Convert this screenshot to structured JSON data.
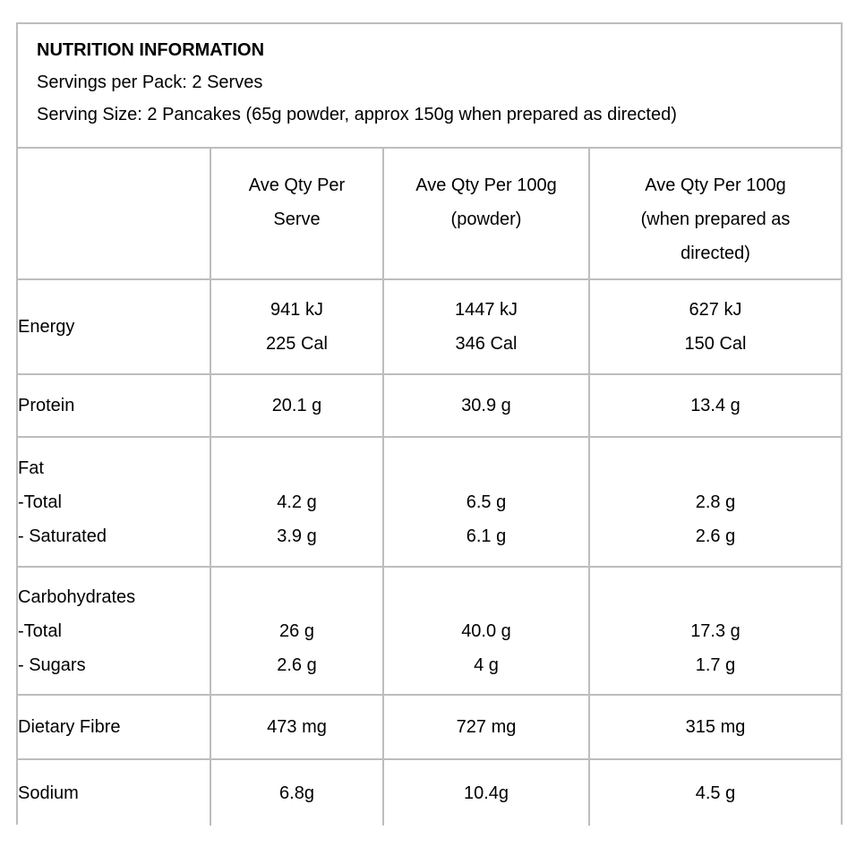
{
  "info": {
    "title": "NUTRITION INFORMATION",
    "servings_per_pack": "Servings per Pack: 2 Serves",
    "serving_size": "Serving Size: 2 Pancakes (65g powder, approx 150g when prepared as directed)"
  },
  "colors": {
    "border": "#bdbdbd",
    "text": "#000000",
    "background": "#ffffff"
  },
  "table": {
    "headers": [
      {
        "lines": []
      },
      {
        "lines": [
          "Ave Qty Per",
          "Serve"
        ]
      },
      {
        "lines": [
          "Ave Qty Per 100g",
          "(powder)"
        ]
      },
      {
        "lines": [
          "Ave Qty Per 100g",
          "(when prepared as",
          "directed)"
        ]
      }
    ],
    "rows": [
      {
        "label_lines": [
          "Energy"
        ],
        "cells": [
          [
            "941 kJ",
            "225 Cal"
          ],
          [
            "1447 kJ",
            "346 Cal"
          ],
          [
            "627 kJ",
            "150 Cal"
          ]
        ]
      },
      {
        "label_lines": [
          "Protein"
        ],
        "cells": [
          [
            "20.1 g"
          ],
          [
            "30.9 g"
          ],
          [
            "13.4 g"
          ]
        ]
      },
      {
        "label_lines": [
          "Fat",
          "-Total",
          "- Saturated"
        ],
        "cells": [
          [
            "",
            "4.2 g",
            "3.9 g"
          ],
          [
            "",
            "6.5 g",
            "6.1 g"
          ],
          [
            "",
            "2.8 g",
            "2.6 g"
          ]
        ]
      },
      {
        "label_lines": [
          "Carbohydrates",
          "-Total",
          "- Sugars"
        ],
        "cells": [
          [
            "",
            "26 g",
            "2.6 g"
          ],
          [
            "",
            "40.0 g",
            "4 g"
          ],
          [
            "",
            "17.3 g",
            "1.7 g"
          ]
        ]
      },
      {
        "label_lines": [
          "Dietary Fibre"
        ],
        "cells": [
          [
            "473 mg"
          ],
          [
            "727 mg"
          ],
          [
            "315 mg"
          ]
        ]
      },
      {
        "label_lines": [
          "Sodium"
        ],
        "cells": [
          [
            "6.8g"
          ],
          [
            "10.4g"
          ],
          [
            "4.5 g"
          ]
        ]
      }
    ]
  }
}
